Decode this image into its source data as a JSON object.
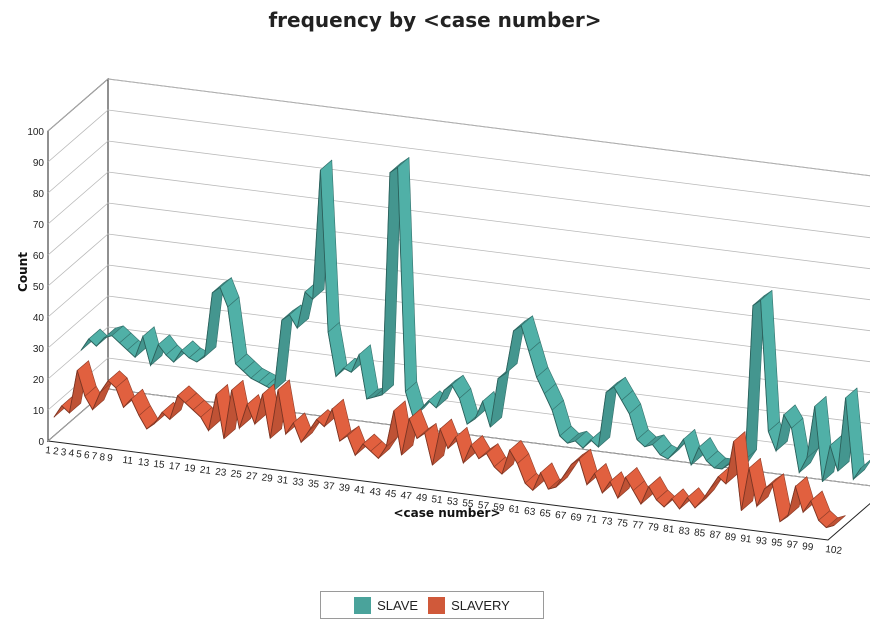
{
  "chart_data": {
    "type": "line",
    "render": "3d-ribbon",
    "title": "frequency by <case number>",
    "xlabel": "<case number>",
    "ylabel": "Count",
    "ylim": [
      0,
      100
    ],
    "y_ticks": [
      "0",
      "10",
      "20",
      "30",
      "40",
      "50",
      "60",
      "70",
      "80",
      "90",
      "100"
    ],
    "grid": true,
    "legend_position": "bottom",
    "x_tick_labels": [
      "1",
      "2",
      "3",
      "4",
      "5",
      "6",
      "7",
      "8",
      "9",
      "11",
      "13",
      "15",
      "17",
      "19",
      "21",
      "23",
      "25",
      "27",
      "29",
      "31",
      "33",
      "35",
      "37",
      "39",
      "41",
      "43",
      "45",
      "47",
      "49",
      "51",
      "53",
      "55",
      "57",
      "59",
      "61",
      "63",
      "65",
      "67",
      "69",
      "71",
      "73",
      "75",
      "77",
      "79",
      "81",
      "83",
      "85",
      "87",
      "89",
      "91",
      "93",
      "95",
      "97",
      "99",
      "102"
    ],
    "x": [
      1,
      2,
      3,
      4,
      5,
      6,
      7,
      8,
      9,
      10,
      11,
      12,
      13,
      14,
      15,
      16,
      17,
      18,
      19,
      20,
      21,
      22,
      23,
      24,
      25,
      26,
      27,
      28,
      29,
      30,
      31,
      32,
      33,
      34,
      35,
      36,
      37,
      38,
      39,
      40,
      41,
      42,
      43,
      44,
      45,
      46,
      47,
      48,
      49,
      50,
      51,
      52,
      53,
      54,
      55,
      56,
      57,
      58,
      59,
      60,
      61,
      62,
      63,
      64,
      65,
      66,
      67,
      68,
      69,
      70,
      71,
      72,
      73,
      74,
      75,
      76,
      77,
      78,
      79,
      80,
      81,
      82,
      83,
      84,
      85,
      86,
      87,
      88,
      89,
      90,
      91,
      92,
      93,
      94,
      95,
      96,
      97,
      98,
      99,
      100,
      101,
      102
    ],
    "series": [
      {
        "name": "SLAVE",
        "color": "#4aa39b",
        "values": [
          20,
          24,
          22,
          25,
          26,
          24,
          22,
          20,
          27,
          18,
          25,
          22,
          20,
          24,
          22,
          21,
          23,
          44,
          46,
          40,
          22,
          20,
          18,
          17,
          16,
          15,
          38,
          40,
          36,
          48,
          46,
          88,
          36,
          22,
          25,
          24,
          30,
          16,
          17,
          18,
          90,
          92,
          20,
          12,
          15,
          18,
          16,
          22,
          24,
          20,
          12,
          14,
          20,
          12,
          28,
          30,
          44,
          46,
          38,
          30,
          25,
          20,
          12,
          10,
          11,
          9,
          12,
          10,
          28,
          30,
          26,
          22,
          14,
          12,
          13,
          10,
          9,
          12,
          16,
          8,
          14,
          10,
          8,
          8,
          10,
          8,
          12,
          62,
          64,
          22,
          16,
          28,
          24,
          10,
          15,
          32,
          8,
          20,
          12,
          36,
          10,
          14
        ]
      },
      {
        "name": "SLAVERY",
        "color": "#d0593a",
        "values": [
          6,
          10,
          8,
          22,
          14,
          10,
          16,
          20,
          18,
          12,
          15,
          10,
          6,
          8,
          12,
          10,
          18,
          16,
          14,
          12,
          8,
          20,
          6,
          22,
          10,
          18,
          12,
          22,
          8,
          24,
          10,
          14,
          8,
          12,
          16,
          14,
          20,
          10,
          12,
          6,
          10,
          8,
          6,
          10,
          22,
          8,
          20,
          14,
          16,
          6,
          18,
          12,
          16,
          8,
          14,
          10,
          12,
          8,
          6,
          14,
          10,
          4,
          2,
          8,
          3,
          4,
          8,
          12,
          14,
          6,
          10,
          4,
          8,
          3,
          10,
          6,
          2,
          8,
          4,
          2,
          5,
          2,
          6,
          3,
          6,
          10,
          14,
          12,
          26,
          4,
          18,
          6,
          12,
          14,
          2,
          4,
          14,
          6,
          10,
          4,
          2,
          3
        ]
      }
    ]
  },
  "legend": {
    "items": [
      {
        "label": "SLAVE",
        "color": "#4aa39b"
      },
      {
        "label": "SLAVERY",
        "color": "#d0593a"
      }
    ]
  }
}
